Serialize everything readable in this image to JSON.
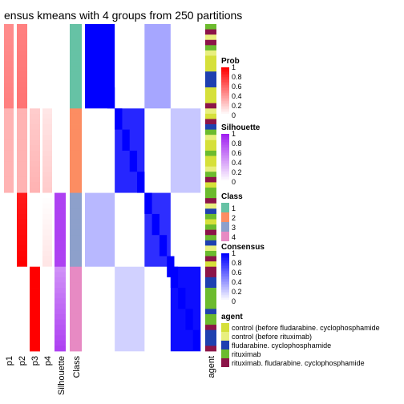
{
  "chart_data": {
    "type": "heatmap",
    "title": "ensus kmeans with 4 groups from 250 partitions",
    "annotation_columns": [
      "p1",
      "p2",
      "p3",
      "p4",
      "Silhouette",
      "Class"
    ],
    "side_annotation_label": "agent",
    "groups": [
      {
        "class": 1,
        "n_samples": 16,
        "p1_range": [
          0.45,
          0.5
        ],
        "p2_range": [
          0.5,
          0.55
        ],
        "p3": 0,
        "p4": 0,
        "silhouette_range": [
          0.0,
          0.0
        ]
      },
      {
        "class": 2,
        "n_samples": 16,
        "p1": 0.3,
        "p2": 0.3,
        "p3_range": [
          0.2,
          0.3
        ],
        "p4_range": [
          0.1,
          0.2
        ],
        "silhouette_range": [
          0.0,
          0.0
        ]
      },
      {
        "class": 3,
        "n_samples": 14,
        "p1": 0,
        "p2_range": [
          0.9,
          1.0
        ],
        "p3": 0,
        "p4_range": [
          0.0,
          0.1
        ],
        "silhouette": 0.85
      },
      {
        "class": 4,
        "n_samples": 16,
        "p1": 0,
        "p2": 0,
        "p3": 1.0,
        "p4": 0,
        "silhouette_range": [
          0.5,
          0.85
        ]
      }
    ],
    "legends": [
      {
        "title": "Prob",
        "ticks": [
          "1",
          "0.8",
          "0.6",
          "0.4",
          "0.2",
          "0"
        ]
      },
      {
        "title": "Silhouette",
        "ticks": [
          "1",
          "0.8",
          "0.6",
          "0.4",
          "0.2",
          "0"
        ]
      },
      {
        "title": "Class",
        "entries": [
          "1",
          "2",
          "3",
          "4"
        ],
        "colors": [
          "#66c2a5",
          "#fc8d62",
          "#8da0cb",
          "#e78ac3"
        ]
      },
      {
        "title": "Consensus",
        "ticks": [
          "1",
          "0.8",
          "0.6",
          "0.4",
          "0.2",
          "0"
        ]
      },
      {
        "title": "agent",
        "entries": [
          "control (before fludarabine. cyclophosphamide",
          "control (before rituximab)",
          "fludarabine. cyclophosphamide",
          "rituximab",
          "rituximab. fludarabine. cyclophosphamide"
        ],
        "colors": [
          "#d6e03a",
          "#e8ef7e",
          "#1f40b0",
          "#6cbb2e",
          "#8c1448"
        ]
      }
    ],
    "agent_sequence": [
      3,
      4,
      1,
      4,
      3,
      1,
      0,
      0,
      0,
      2,
      2,
      2,
      0,
      0,
      0,
      4,
      1,
      0,
      4,
      2,
      3,
      1,
      0,
      0,
      3,
      0,
      0,
      1,
      3,
      4,
      0,
      3,
      3,
      4,
      1,
      2,
      3,
      0,
      3,
      4,
      3,
      2,
      1,
      3,
      4,
      0,
      4,
      4,
      2,
      2,
      3,
      3,
      3,
      3,
      2,
      3,
      3,
      4,
      2,
      2,
      2,
      4
    ],
    "colors": {
      "prob": "#ff0000",
      "silhouette": "#a020f0",
      "consensus": "#0000ff"
    }
  }
}
